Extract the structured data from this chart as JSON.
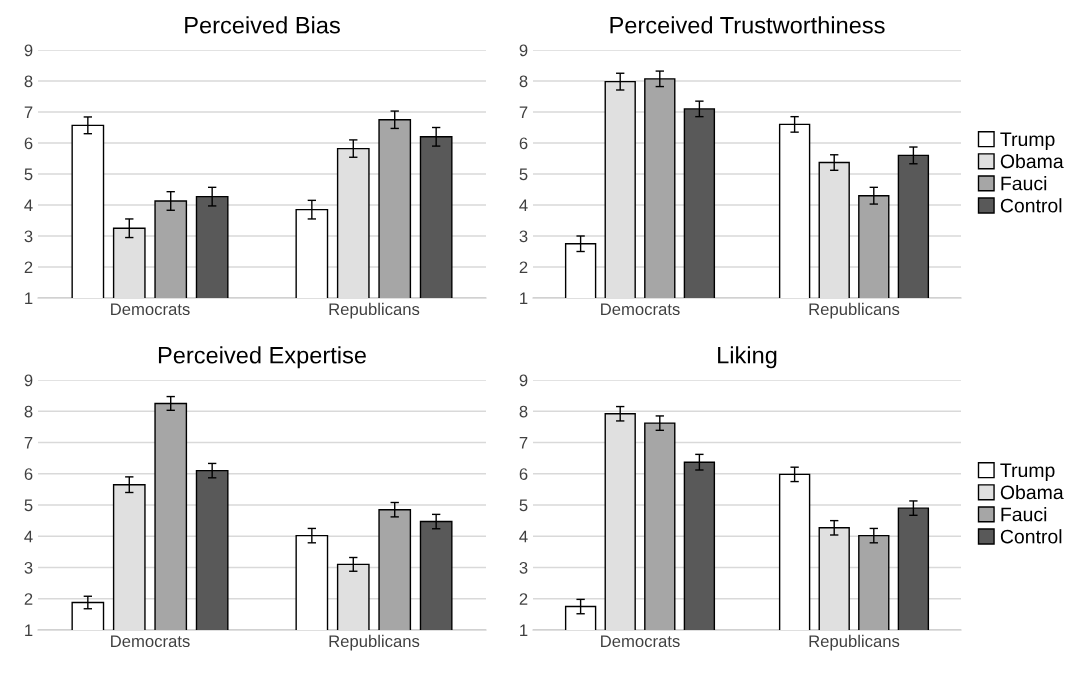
{
  "chart_data": [
    {
      "type": "bar",
      "title": "Perceived Bias",
      "categories": [
        "Democrats",
        "Republicans"
      ],
      "ylim": [
        1,
        9
      ],
      "yticks": [
        1,
        2,
        3,
        4,
        5,
        6,
        7,
        8,
        9
      ],
      "grid": "y",
      "legend": false,
      "series": [
        {
          "color": "#ffffff",
          "values": [
            6.57,
            3.85
          ],
          "errors": [
            0.27,
            0.3
          ]
        },
        {
          "color": "#e0e0e0",
          "values": [
            3.25,
            5.82
          ],
          "errors": [
            0.3,
            0.28
          ]
        },
        {
          "color": "#a6a6a6",
          "values": [
            4.13,
            6.75
          ],
          "errors": [
            0.3,
            0.28
          ]
        },
        {
          "color": "#595959",
          "values": [
            4.27,
            6.2
          ],
          "errors": [
            0.3,
            0.3
          ]
        }
      ]
    },
    {
      "type": "bar",
      "title": "Perceived Trustworthiness",
      "categories": [
        "Democrats",
        "Republicans"
      ],
      "ylim": [
        1,
        9
      ],
      "yticks": [
        1,
        2,
        3,
        4,
        5,
        6,
        7,
        8,
        9
      ],
      "grid": "y",
      "legend": "right",
      "series": [
        {
          "name": "Trump",
          "color": "#ffffff",
          "values": [
            2.75,
            6.6
          ],
          "errors": [
            0.25,
            0.25
          ]
        },
        {
          "name": "Obama",
          "color": "#e0e0e0",
          "values": [
            7.98,
            5.37
          ],
          "errors": [
            0.27,
            0.25
          ]
        },
        {
          "name": "Fauci",
          "color": "#a6a6a6",
          "values": [
            8.07,
            4.3
          ],
          "errors": [
            0.25,
            0.27
          ]
        },
        {
          "name": "Control",
          "color": "#595959",
          "values": [
            7.1,
            5.6
          ],
          "errors": [
            0.25,
            0.27
          ]
        }
      ]
    },
    {
      "type": "bar",
      "title": "Perceived Expertise",
      "categories": [
        "Democrats",
        "Republicans"
      ],
      "ylim": [
        1,
        9
      ],
      "yticks": [
        1,
        2,
        3,
        4,
        5,
        6,
        7,
        8,
        9
      ],
      "grid": "y",
      "legend": false,
      "series": [
        {
          "color": "#ffffff",
          "values": [
            1.88,
            4.02
          ],
          "errors": [
            0.2,
            0.23
          ]
        },
        {
          "color": "#e0e0e0",
          "values": [
            5.65,
            3.1
          ],
          "errors": [
            0.25,
            0.22
          ]
        },
        {
          "color": "#a6a6a6",
          "values": [
            8.25,
            4.85
          ],
          "errors": [
            0.22,
            0.23
          ]
        },
        {
          "color": "#595959",
          "values": [
            6.1,
            4.47
          ],
          "errors": [
            0.23,
            0.23
          ]
        }
      ]
    },
    {
      "type": "bar",
      "title": "Liking",
      "categories": [
        "Democrats",
        "Republicans"
      ],
      "ylim": [
        1,
        9
      ],
      "yticks": [
        1,
        2,
        3,
        4,
        5,
        6,
        7,
        8,
        9
      ],
      "grid": "y",
      "legend": "right",
      "series": [
        {
          "name": "Trump",
          "color": "#ffffff",
          "values": [
            1.75,
            5.98
          ],
          "errors": [
            0.23,
            0.23
          ]
        },
        {
          "name": "Obama",
          "color": "#e0e0e0",
          "values": [
            7.92,
            4.27
          ],
          "errors": [
            0.23,
            0.23
          ]
        },
        {
          "name": "Fauci",
          "color": "#a6a6a6",
          "values": [
            7.62,
            4.02
          ],
          "errors": [
            0.23,
            0.23
          ]
        },
        {
          "name": "Control",
          "color": "#595959",
          "values": [
            6.37,
            4.9
          ],
          "errors": [
            0.25,
            0.23
          ]
        }
      ]
    }
  ]
}
